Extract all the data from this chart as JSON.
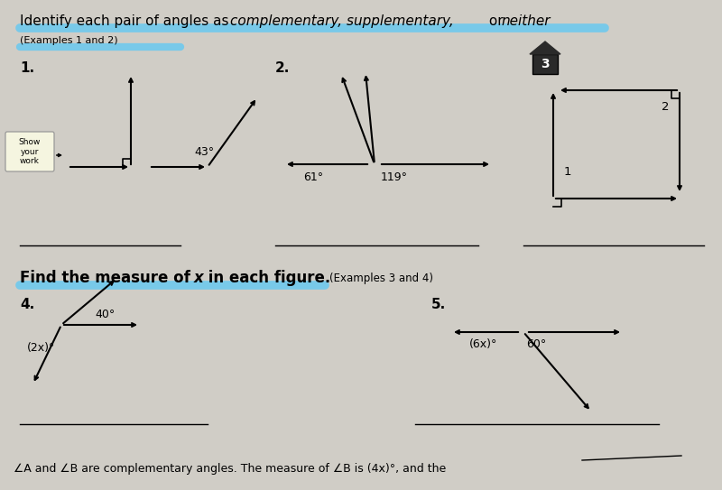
{
  "bg_color": "#d0cdc6",
  "highlight_color": "#5bc8f5",
  "subtitle_text": "(Examples 1 and 2)",
  "section2_sub": "(Examples 3 and 4)",
  "bottom_text": "∠A and ∠B are complementary angles. The measure of ∠B is (4x)°, and the",
  "angle1_val": "43°",
  "angle2a_val": "61°",
  "angle2b_val": "119°",
  "angle4a_val": "40°",
  "angle4b_val": "(2x)°",
  "angle5a_val": "(6x)°",
  "angle5b_val": "60°",
  "show_label": "Show\nyour\nwork"
}
